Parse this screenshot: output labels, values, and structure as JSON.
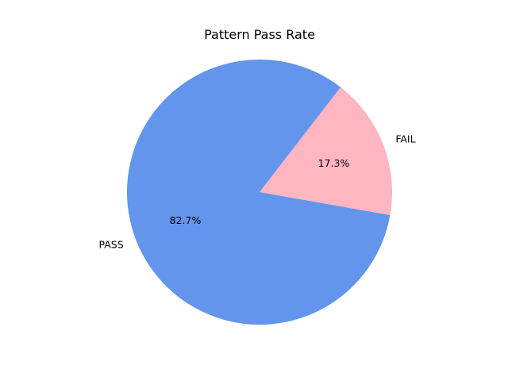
{
  "chart_data": {
    "type": "pie",
    "title": "Pattern Pass Rate",
    "slices": [
      {
        "label": "FAIL",
        "value": 17.3,
        "pct_label": "17.3%",
        "color": "#FFB6C1"
      },
      {
        "label": "PASS",
        "value": 82.7,
        "pct_label": "82.7%",
        "color": "#6495ED"
      }
    ],
    "start_angle_deg": -10,
    "direction": "counterclockwise",
    "legend": "none"
  }
}
